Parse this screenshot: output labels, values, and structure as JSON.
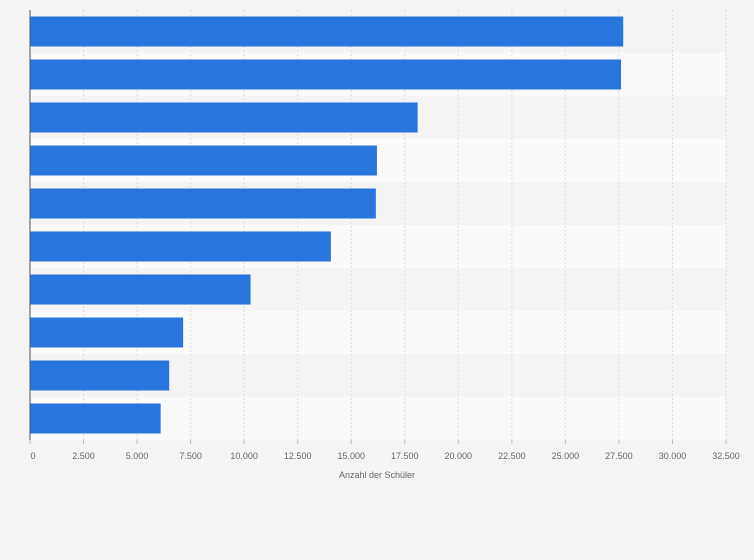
{
  "chart_data": {
    "type": "bar",
    "orientation": "horizontal",
    "values": [
      27700,
      27600,
      18100,
      16200,
      16150,
      14050,
      10300,
      7150,
      6500,
      6100
    ],
    "xlabel": "Anzahl der Schüler",
    "ylabel": "",
    "xlim": [
      0,
      32500
    ],
    "x_ticks": [
      0,
      2500,
      5000,
      7500,
      10000,
      12500,
      15000,
      17500,
      20000,
      22500,
      25000,
      27500,
      30000,
      32500
    ],
    "x_tick_labels": [
      "0",
      "2.500",
      "5.000",
      "7.500",
      "10.000",
      "12.500",
      "15.000",
      "17.500",
      "20.000",
      "22.500",
      "25.000",
      "27.500",
      "30.000",
      "32.500"
    ],
    "grid": true,
    "legend": "none",
    "bar_color": "#2876dd",
    "band_colors": [
      "#f4f4f4",
      "#fafafa"
    ],
    "gridline_color": "#dddddd",
    "axis_color": "#555555"
  }
}
